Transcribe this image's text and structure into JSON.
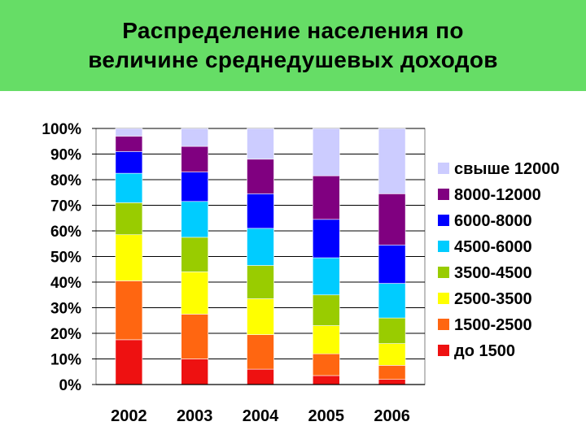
{
  "title": {
    "line1": "Распределение населения по",
    "line2": "величине среднедушевых доходов"
  },
  "colors": {
    "header_background": "#66dd66"
  },
  "chart_data": {
    "type": "bar",
    "stacked": true,
    "percent": true,
    "categories": [
      "2002",
      "2003",
      "2004",
      "2005",
      "2006"
    ],
    "ylim": [
      0,
      100
    ],
    "yticks": [
      "0%",
      "10%",
      "20%",
      "30%",
      "40%",
      "50%",
      "60%",
      "70%",
      "80%",
      "90%",
      "100%"
    ],
    "grid": true,
    "legend_position": "right",
    "series": [
      {
        "name": "до 1500",
        "color": "#ee1111",
        "values": [
          17.5,
          10,
          6,
          3.5,
          2
        ]
      },
      {
        "name": "1500-2500",
        "color": "#ff6611",
        "values": [
          23,
          17.5,
          13.5,
          8.5,
          5.5
        ]
      },
      {
        "name": "2500-3500",
        "color": "#ffff00",
        "values": [
          18,
          16.5,
          14,
          11,
          8.5
        ]
      },
      {
        "name": "3500-4500",
        "color": "#99cc00",
        "values": [
          12.5,
          13.5,
          13,
          12,
          10
        ]
      },
      {
        "name": "4500-6000",
        "color": "#00ccff",
        "values": [
          11.5,
          14,
          14.5,
          14.5,
          13.5
        ]
      },
      {
        "name": "6000-8000",
        "color": "#0000ff",
        "values": [
          8.5,
          11.5,
          13.5,
          15,
          15
        ]
      },
      {
        "name": "8000-12000",
        "color": "#800080",
        "values": [
          6,
          10,
          13.5,
          17,
          20
        ]
      },
      {
        "name": "свыше 12000",
        "color": "#ccccff",
        "values": [
          3,
          7,
          12,
          18.5,
          25.5
        ]
      }
    ]
  }
}
